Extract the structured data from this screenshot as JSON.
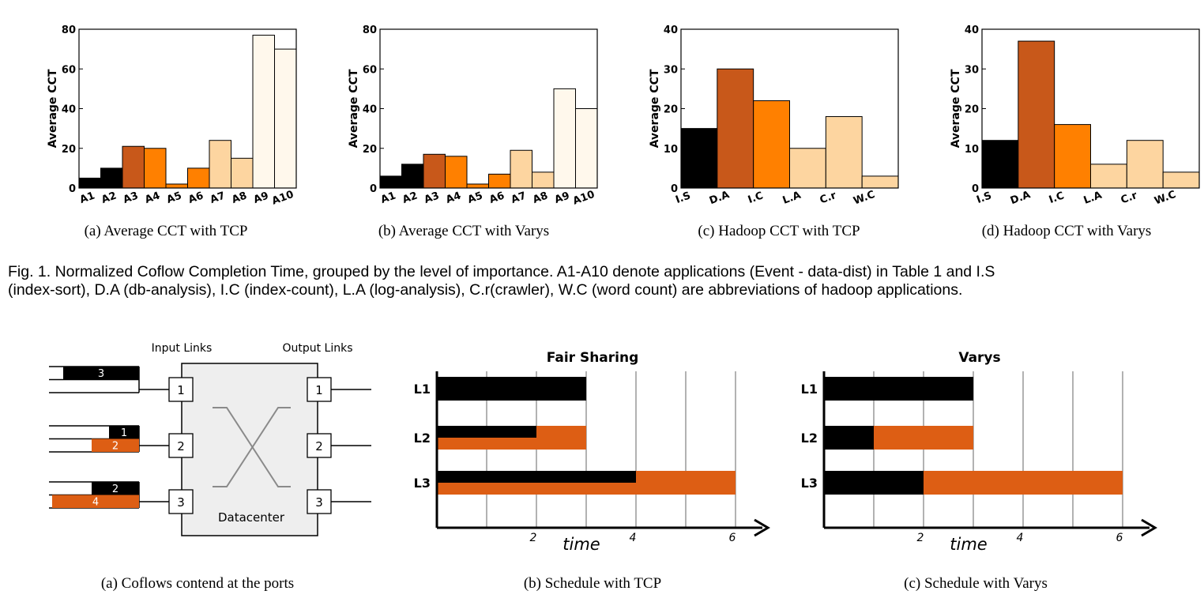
{
  "colors": {
    "black": "#000000",
    "dark_orange": "#c8581a",
    "orange": "#ff8000",
    "light_orange": "#fdd5a0",
    "cream": "#fff8ec",
    "schedule_orange": "#dd5e14",
    "panel_gray": "#eeeeee"
  },
  "bar_charts": [
    {
      "caption": "(a)  Average CCT with TCP",
      "ylabel": "Average CCT",
      "ymax": 80,
      "yticks": [
        "0",
        "20",
        "40",
        "60",
        "80"
      ],
      "categories": [
        "A1",
        "A2",
        "A3",
        "A4",
        "A5",
        "A6",
        "A7",
        "A8",
        "A9",
        "A10"
      ],
      "values": [
        5,
        10,
        21,
        20,
        2,
        10,
        24,
        15,
        77,
        70
      ],
      "colors": [
        "black",
        "black",
        "dark_orange",
        "orange",
        "orange",
        "orange",
        "light_orange",
        "light_orange",
        "cream",
        "cream"
      ]
    },
    {
      "caption": "(b)  Average CCT with Varys",
      "ylabel": "Average CCT",
      "ymax": 80,
      "yticks": [
        "0",
        "20",
        "40",
        "60",
        "80"
      ],
      "categories": [
        "A1",
        "A2",
        "A3",
        "A4",
        "A5",
        "A6",
        "A7",
        "A8",
        "A9",
        "A10"
      ],
      "values": [
        6,
        12,
        17,
        16,
        2,
        7,
        19,
        8,
        50,
        40
      ],
      "colors": [
        "black",
        "black",
        "dark_orange",
        "orange",
        "orange",
        "orange",
        "light_orange",
        "light_orange",
        "cream",
        "cream"
      ]
    },
    {
      "caption": "(c)  Hadoop CCT with TCP",
      "ylabel": "Average CCT",
      "ymax": 40,
      "yticks": [
        "0",
        "10",
        "20",
        "30",
        "40"
      ],
      "categories": [
        "I.S",
        "D.A",
        "I.C",
        "L.A",
        "C.r",
        "W.C"
      ],
      "values": [
        15,
        30,
        22,
        10,
        18,
        3
      ],
      "colors": [
        "black",
        "dark_orange",
        "orange",
        "light_orange",
        "light_orange",
        "light_orange"
      ]
    },
    {
      "caption": "(d)  Hadoop CCT with Varys",
      "ylabel": "Average CCT",
      "ymax": 40,
      "yticks": [
        "0",
        "10",
        "20",
        "30",
        "40"
      ],
      "categories": [
        "I.S",
        "D.A",
        "I.C",
        "L.A",
        "C.r",
        "W.C"
      ],
      "values": [
        12,
        37,
        16,
        6,
        12,
        4
      ],
      "colors": [
        "black",
        "dark_orange",
        "orange",
        "light_orange",
        "light_orange",
        "light_orange"
      ]
    }
  ],
  "figure1_caption": {
    "line1": "Fig. 1. Normalized Coflow Completion Time, grouped by the level of importance. A1-A10 denote applications (Event - data-dist) in Table 1 and I.S",
    "line2": "(index-sort), D.A (db-analysis), I.C (index-count), L.A (log-analysis), C.r(crawler), W.C (word count) are abbreviations of hadoop applications."
  },
  "coflow_diagram": {
    "input_links_label": "Input Links",
    "output_links_label": "Output Links",
    "datacenter_label": "Datacenter",
    "input_ports": [
      "1",
      "2",
      "3"
    ],
    "output_ports": [
      "1",
      "2",
      "3"
    ],
    "queues": [
      {
        "port": "1",
        "upper": {
          "label": "3",
          "color": "black"
        },
        "lower": null
      },
      {
        "port": "2",
        "upper": {
          "label": "1",
          "color": "black"
        },
        "lower": {
          "label": "2",
          "color": "schedule_orange"
        }
      },
      {
        "port": "3",
        "upper": {
          "label": "2",
          "color": "black"
        },
        "lower": {
          "label": "4",
          "color": "schedule_orange"
        }
      }
    ],
    "caption": "(a)  Coflows contend at the ports"
  },
  "schedules": [
    {
      "title": "Fair Sharing",
      "caption": "(b)  Schedule with TCP",
      "xlabel": "time",
      "xticks": [
        "2",
        "4",
        "6"
      ],
      "rows": [
        {
          "label": "L1",
          "segments": [
            {
              "start": 0,
              "end": 3,
              "color": "black",
              "band": "full"
            }
          ]
        },
        {
          "label": "L2",
          "segments": [
            {
              "start": 0,
              "end": 3,
              "color": "schedule_orange",
              "band": "full"
            },
            {
              "start": 0,
              "end": 2,
              "color": "black",
              "band": "top"
            }
          ]
        },
        {
          "label": "L3",
          "segments": [
            {
              "start": 0,
              "end": 6,
              "color": "schedule_orange",
              "band": "full"
            },
            {
              "start": 0,
              "end": 4,
              "color": "black",
              "band": "top"
            }
          ]
        }
      ]
    },
    {
      "title": "Varys",
      "caption": "(c)  Schedule with Varys",
      "xlabel": "time",
      "xticks": [
        "2",
        "4",
        "6"
      ],
      "rows": [
        {
          "label": "L1",
          "segments": [
            {
              "start": 0,
              "end": 3,
              "color": "black",
              "band": "full"
            }
          ]
        },
        {
          "label": "L2",
          "segments": [
            {
              "start": 0,
              "end": 1,
              "color": "black",
              "band": "full"
            },
            {
              "start": 1,
              "end": 3,
              "color": "schedule_orange",
              "band": "full"
            }
          ]
        },
        {
          "label": "L3",
          "segments": [
            {
              "start": 0,
              "end": 2,
              "color": "black",
              "band": "full"
            },
            {
              "start": 2,
              "end": 6,
              "color": "schedule_orange",
              "band": "full"
            }
          ]
        }
      ]
    }
  ]
}
